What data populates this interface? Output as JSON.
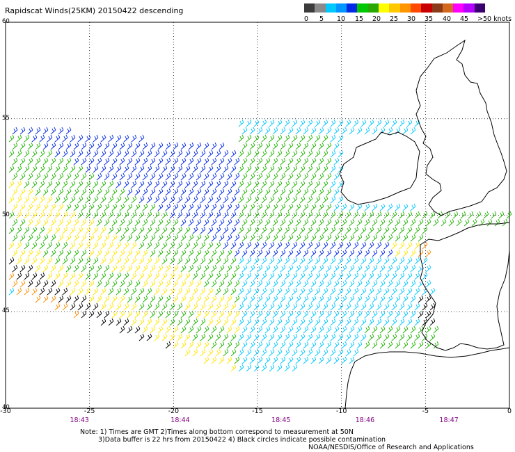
{
  "title": "Rapidscat Winds(25KM) 20150422 descending",
  "legend": {
    "labels": [
      "0",
      "5",
      "10",
      "15",
      "20",
      "25",
      "30",
      "35",
      "40",
      "45",
      ">50 knots"
    ],
    "colors": [
      "#3c3c3c",
      "#8a8a8a",
      "#00c8ff",
      "#0096ff",
      "#0028e6",
      "#00c800",
      "#28a800",
      "#ffff00",
      "#ffc800",
      "#ff9600",
      "#ff4800",
      "#c80000",
      "#8b3a1a",
      "#d2691e",
      "#ff00ff",
      "#b400ff",
      "#3a0070"
    ]
  },
  "axes": {
    "lat_labels": [
      "60",
      "55",
      "50",
      "45",
      "40"
    ],
    "lon_labels": [
      "-30",
      "-25",
      "-20",
      "-15",
      "-10",
      "-5",
      "0"
    ],
    "times": [
      "18:43",
      "18:44",
      "18:45",
      "18:46",
      "18:47"
    ]
  },
  "notes": [
    "Note: 1) Times are GMT 2)Times along bottom correspond to measurement at 50N",
    "3)Data buffer is 22 hrs from 20150422 4) Black circles indicate possible contamination"
  ],
  "credit": "NOAA/NESDIS/Office of Research and Applications"
}
